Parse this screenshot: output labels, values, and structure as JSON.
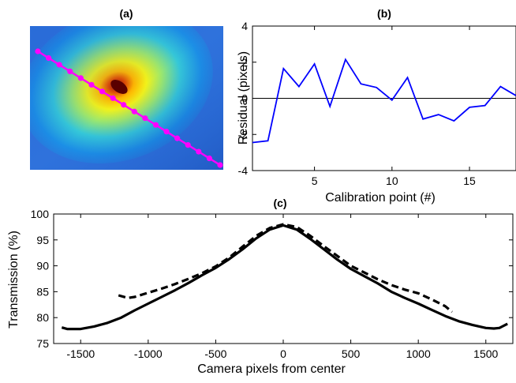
{
  "chart_data": [
    {
      "panel": "(a)",
      "type": "image",
      "title": "(a)",
      "colormap": "jet",
      "calibration_points": 18,
      "line_color": "#ff00ff"
    },
    {
      "panel": "(b)",
      "type": "line",
      "title": "(b)",
      "xlabel": "Calibration point (#)",
      "ylabel": "Residual (pixels)",
      "xlim": [
        1,
        18
      ],
      "ylim": [
        -4,
        4
      ],
      "xticks": [
        "5",
        "10",
        "15"
      ],
      "yticks": [
        "4",
        "2",
        "0",
        "-2",
        "-4"
      ],
      "zero_line": true,
      "series": [
        {
          "color": "#0000ff",
          "x": [
            1,
            2,
            3,
            4,
            5,
            6,
            7,
            8,
            9,
            10,
            11,
            12,
            13,
            14,
            15,
            16,
            17,
            18
          ],
          "values": [
            -2.45,
            -2.35,
            1.65,
            0.65,
            1.9,
            -0.45,
            2.15,
            0.8,
            0.6,
            -0.1,
            1.15,
            -1.15,
            -0.9,
            -1.25,
            -0.5,
            -0.4,
            0.65,
            0.15
          ]
        }
      ]
    },
    {
      "panel": "(c)",
      "type": "line",
      "title": "(c)",
      "xlabel": "Camera pixels from center",
      "ylabel": "Transmission (%)",
      "xlim": [
        -1700,
        1700
      ],
      "ylim": [
        75,
        100
      ],
      "xticks": [
        "-1500",
        "-1000",
        "-500",
        "0",
        "500",
        "1000",
        "1500"
      ],
      "yticks": [
        "100",
        "95",
        "90",
        "85",
        "80",
        "75"
      ],
      "series": [
        {
          "style": "solid",
          "color": "#000000",
          "x": [
            -1640,
            -1600,
            -1500,
            -1400,
            -1300,
            -1200,
            -1100,
            -1000,
            -900,
            -800,
            -700,
            -600,
            -500,
            -400,
            -300,
            -200,
            -100,
            0,
            100,
            200,
            300,
            400,
            500,
            600,
            700,
            800,
            900,
            1000,
            1100,
            1200,
            1300,
            1400,
            1500,
            1560,
            1600,
            1660
          ],
          "values": [
            78.1,
            77.8,
            77.8,
            78.3,
            79.0,
            80.0,
            81.4,
            82.7,
            84.0,
            85.3,
            86.7,
            88.2,
            89.6,
            91.3,
            93.2,
            95.3,
            97.0,
            97.8,
            97.0,
            95.2,
            93.2,
            91.2,
            89.4,
            88.0,
            86.6,
            85.0,
            83.8,
            82.7,
            81.5,
            80.3,
            79.3,
            78.6,
            78.0,
            77.9,
            78.0,
            78.8
          ]
        },
        {
          "style": "dashed",
          "color": "#000000",
          "x": [
            -1220,
            -1150,
            -1100,
            -1000,
            -900,
            -800,
            -700,
            -600,
            -500,
            -400,
            -300,
            -200,
            -100,
            0,
            100,
            200,
            300,
            400,
            500,
            600,
            700,
            800,
            900,
            1000,
            1100,
            1200,
            1250
          ],
          "values": [
            84.3,
            83.8,
            84.0,
            84.8,
            85.6,
            86.5,
            87.5,
            88.6,
            89.9,
            91.6,
            93.7,
            95.8,
            97.3,
            98.0,
            97.5,
            95.8,
            93.8,
            91.9,
            90.0,
            88.7,
            87.4,
            86.3,
            85.4,
            84.7,
            83.5,
            82.2,
            81.1
          ]
        }
      ]
    }
  ]
}
